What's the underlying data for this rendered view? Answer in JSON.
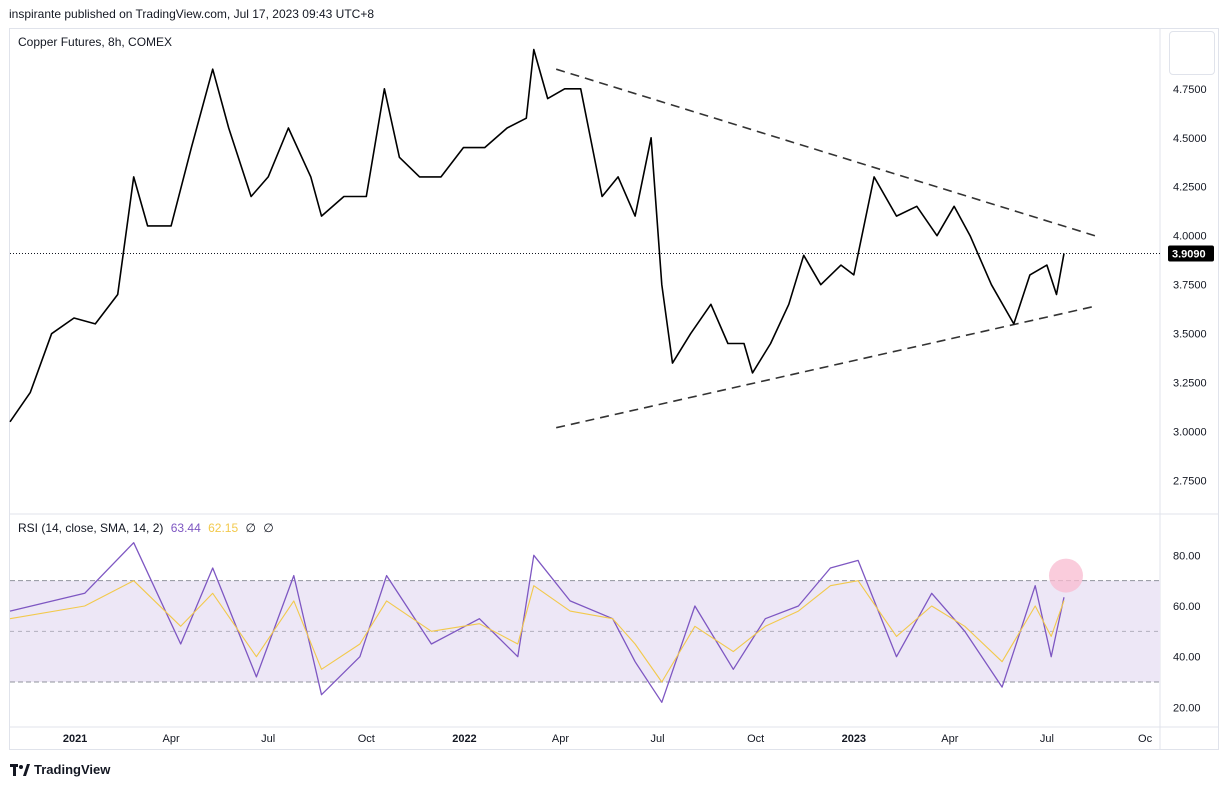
{
  "header": {
    "published": "inspirante published on TradingView.com, Jul 17, 2023 09:43 UTC+8"
  },
  "legend": {
    "symbol": "Copper Futures, 8h, COMEX"
  },
  "rsi_legend": {
    "label": "RSI (14, close, SMA, 14, 2)",
    "rsi_value": "63.44",
    "sma_value": "62.15",
    "extra1": "∅",
    "extra2": "∅"
  },
  "branding": {
    "name": "TradingView"
  },
  "colors": {
    "price_line": "#000000",
    "rsi_line": "#7e57c2",
    "rsi_sma": "#f2c94c",
    "band_fill": "#ede7f6",
    "marker": "#f8bbd0",
    "last_price_bg": "#000000"
  },
  "chart_data": [
    {
      "type": "line",
      "ylim": [
        2.6,
        5.05
      ],
      "y_ticks": [
        "4.7500",
        "4.5000",
        "4.2500",
        "4.0000",
        "3.7500",
        "3.5000",
        "3.2500",
        "3.0000",
        "2.7500"
      ],
      "y_tick_values": [
        4.75,
        4.5,
        4.25,
        4.0,
        3.75,
        3.5,
        3.25,
        3.0,
        2.75
      ],
      "x_ticks": [
        "2021",
        "Apr",
        "Jul",
        "Oct",
        "2022",
        "Apr",
        "Jul",
        "Oct",
        "2023",
        "Apr",
        "Jul",
        "Oc"
      ],
      "x_tick_dates": [
        "2021-01-01",
        "2021-04-01",
        "2021-07-01",
        "2021-10-01",
        "2022-01-01",
        "2022-04-01",
        "2022-07-01",
        "2022-10-01",
        "2023-01-01",
        "2023-04-01",
        "2023-07-01",
        "2023-10-01"
      ],
      "last_price": 3.909,
      "last_price_label": "3.9090",
      "series": [
        {
          "x": [
            "2020-11-01",
            "2020-11-20",
            "2020-12-10",
            "2020-12-31",
            "2021-01-20",
            "2021-02-10",
            "2021-02-25",
            "2021-03-10",
            "2021-04-01",
            "2021-04-20",
            "2021-05-10",
            "2021-05-25",
            "2021-06-15",
            "2021-07-01",
            "2021-07-20",
            "2021-08-10",
            "2021-08-20",
            "2021-09-10",
            "2021-10-01",
            "2021-10-18",
            "2021-11-01",
            "2021-11-20",
            "2021-12-10",
            "2021-12-31",
            "2022-01-20",
            "2022-02-10",
            "2022-02-28",
            "2022-03-07",
            "2022-03-20",
            "2022-04-05",
            "2022-04-20",
            "2022-05-10",
            "2022-05-25",
            "2022-06-10",
            "2022-06-25",
            "2022-07-05",
            "2022-07-15",
            "2022-08-01",
            "2022-08-20",
            "2022-09-05",
            "2022-09-20",
            "2022-09-28",
            "2022-10-15",
            "2022-11-01",
            "2022-11-15",
            "2022-12-01",
            "2022-12-20",
            "2023-01-01",
            "2023-01-20",
            "2023-02-10",
            "2023-03-01",
            "2023-03-20",
            "2023-04-05",
            "2023-04-20",
            "2023-05-10",
            "2023-05-31",
            "2023-06-15",
            "2023-07-01",
            "2023-07-10",
            "2023-07-17"
          ],
          "y": [
            3.05,
            3.2,
            3.5,
            3.58,
            3.55,
            3.7,
            4.3,
            4.05,
            4.05,
            4.45,
            4.85,
            4.55,
            4.2,
            4.3,
            4.55,
            4.3,
            4.1,
            4.2,
            4.2,
            4.75,
            4.4,
            4.3,
            4.3,
            4.45,
            4.45,
            4.55,
            4.6,
            4.95,
            4.7,
            4.75,
            4.75,
            4.2,
            4.3,
            4.1,
            4.5,
            3.75,
            3.35,
            3.5,
            3.65,
            3.45,
            3.45,
            3.3,
            3.45,
            3.65,
            3.9,
            3.75,
            3.85,
            3.8,
            4.3,
            4.1,
            4.15,
            4.0,
            4.15,
            4.0,
            3.75,
            3.55,
            3.8,
            3.85,
            3.7,
            3.909
          ]
        }
      ],
      "trendlines": [
        {
          "x": [
            "2022-03-28",
            "2023-08-15"
          ],
          "y": [
            4.85,
            4.0
          ]
        },
        {
          "x": [
            "2022-03-28",
            "2023-08-15"
          ],
          "y": [
            3.02,
            3.64
          ]
        }
      ]
    },
    {
      "type": "line",
      "title": "RSI",
      "ylim": [
        15,
        90
      ],
      "y_ticks": [
        "80.00",
        "60.00",
        "40.00",
        "20.00"
      ],
      "y_tick_values": [
        80,
        60,
        40,
        20
      ],
      "band": [
        30,
        70
      ],
      "midline": 50,
      "series": [
        {
          "name": "RSI",
          "x": [
            "2020-11-01",
            "2021-01-10",
            "2021-02-25",
            "2021-04-10",
            "2021-05-10",
            "2021-06-20",
            "2021-07-25",
            "2021-08-20",
            "2021-09-25",
            "2021-10-20",
            "2021-12-01",
            "2022-01-15",
            "2022-02-20",
            "2022-03-07",
            "2022-04-10",
            "2022-05-20",
            "2022-06-10",
            "2022-07-05",
            "2022-08-05",
            "2022-09-10",
            "2022-10-10",
            "2022-11-10",
            "2022-12-10",
            "2023-01-05",
            "2023-02-10",
            "2023-03-15",
            "2023-04-15",
            "2023-05-20",
            "2023-06-20",
            "2023-07-05",
            "2023-07-17"
          ],
          "y": [
            58,
            65,
            85,
            45,
            75,
            32,
            72,
            25,
            40,
            72,
            45,
            55,
            40,
            80,
            62,
            55,
            38,
            22,
            60,
            35,
            55,
            60,
            75,
            78,
            40,
            65,
            50,
            28,
            68,
            40,
            63.44
          ]
        },
        {
          "name": "SMA",
          "x": [
            "2020-11-01",
            "2021-01-10",
            "2021-02-25",
            "2021-04-10",
            "2021-05-10",
            "2021-06-20",
            "2021-07-25",
            "2021-08-20",
            "2021-09-25",
            "2021-10-20",
            "2021-12-01",
            "2022-01-15",
            "2022-02-20",
            "2022-03-07",
            "2022-04-10",
            "2022-05-20",
            "2022-06-10",
            "2022-07-05",
            "2022-08-05",
            "2022-09-10",
            "2022-10-10",
            "2022-11-10",
            "2022-12-10",
            "2023-01-05",
            "2023-02-10",
            "2023-03-15",
            "2023-04-15",
            "2023-05-20",
            "2023-06-20",
            "2023-07-05",
            "2023-07-17"
          ],
          "y": [
            55,
            60,
            70,
            52,
            65,
            40,
            62,
            35,
            45,
            62,
            50,
            53,
            45,
            68,
            58,
            55,
            45,
            30,
            52,
            42,
            52,
            58,
            68,
            70,
            48,
            60,
            52,
            38,
            60,
            48,
            62.15
          ]
        }
      ]
    }
  ]
}
